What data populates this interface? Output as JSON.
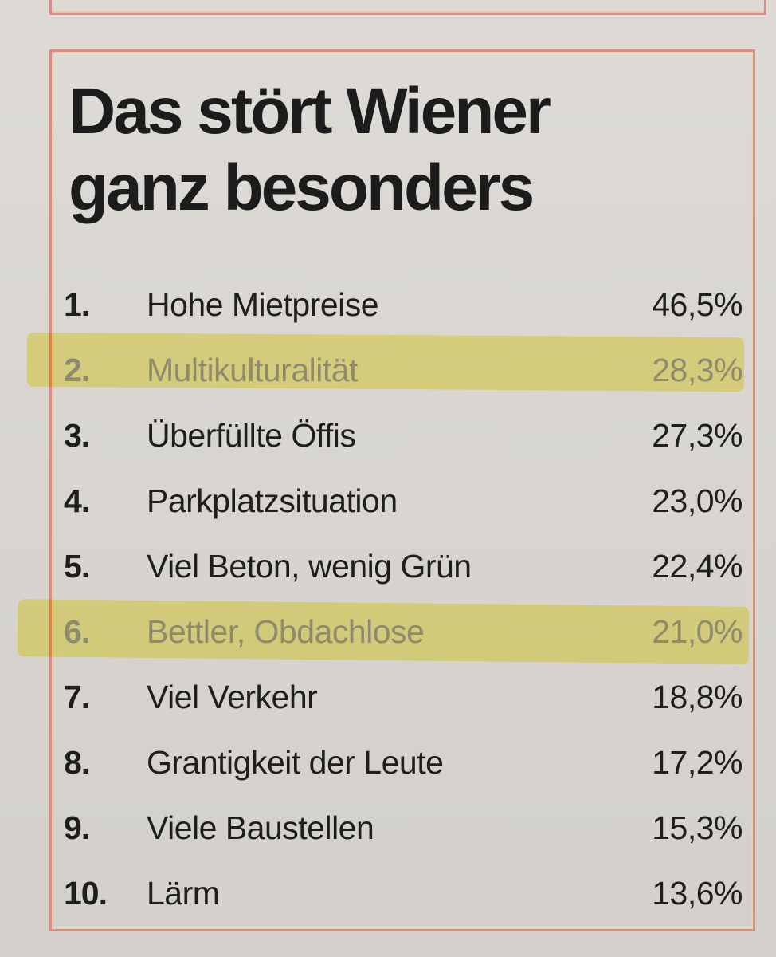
{
  "title": {
    "line1": "Das stört Wiener",
    "line2": "ganz besonders"
  },
  "items": [
    {
      "rank": "1.",
      "label": "Hohe Mietpreise",
      "value": "46,5%",
      "highlighted": false
    },
    {
      "rank": "2.",
      "label": "Multikulturalität",
      "value": "28,3%",
      "highlighted": true
    },
    {
      "rank": "3.",
      "label": "Überfüllte Öffis",
      "value": "27,3%",
      "highlighted": false
    },
    {
      "rank": "4.",
      "label": "Parkplatzsituation",
      "value": "23,0%",
      "highlighted": false
    },
    {
      "rank": "5.",
      "label": "Viel Beton, wenig Grün",
      "value": "22,4%",
      "highlighted": false
    },
    {
      "rank": "6.",
      "label": "Bettler, Obdachlose",
      "value": "21,0%",
      "highlighted": true
    },
    {
      "rank": "7.",
      "label": "Viel Verkehr",
      "value": "18,8%",
      "highlighted": false
    },
    {
      "rank": "8.",
      "label": "Grantigkeit der Leute",
      "value": "17,2%",
      "highlighted": false
    },
    {
      "rank": "9.",
      "label": "Viele Baustellen",
      "value": "15,3%",
      "highlighted": false
    },
    {
      "rank": "10.",
      "label": "Lärm",
      "value": "13,6%",
      "highlighted": false
    }
  ],
  "colors": {
    "highlighter": "#f6f06e",
    "frame": "#d98a8a",
    "text": "#1e1e1e"
  }
}
